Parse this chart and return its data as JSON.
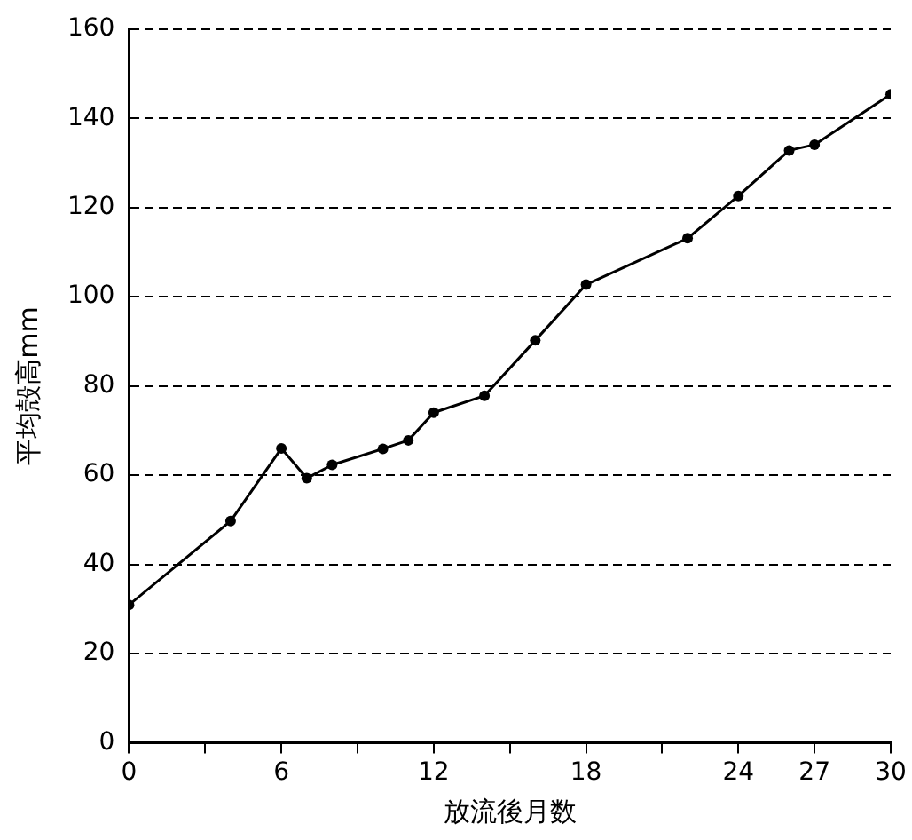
{
  "chart_data": {
    "type": "line",
    "xlabel": "放流後月数",
    "ylabel": "平均殻高mm",
    "x": [
      0,
      4,
      6,
      7,
      8,
      10,
      11,
      12,
      14,
      16,
      18,
      22,
      24,
      26,
      27,
      30
    ],
    "series": [
      {
        "color": "#000000",
        "values": [
          30.9,
          49.7,
          66.0,
          59.3,
          62.3,
          65.9,
          67.8,
          74.0,
          77.8,
          90.2,
          102.7,
          113.1,
          122.6,
          132.8,
          134.1,
          145.4
        ]
      }
    ],
    "xlim": [
      0,
      30
    ],
    "xticks": [
      0,
      {
        "value": 3,
        "label": null
      },
      6,
      {
        "value": 9,
        "label": null
      },
      12,
      {
        "value": 15,
        "label": null
      },
      18,
      {
        "value": 21,
        "label": null
      },
      24,
      27,
      30
    ],
    "ylim": [
      0,
      160
    ],
    "yticks": [
      0,
      20,
      40,
      60,
      80,
      100,
      120,
      140,
      160
    ],
    "grid": "y",
    "marker": "circle",
    "line_style": "solid"
  }
}
